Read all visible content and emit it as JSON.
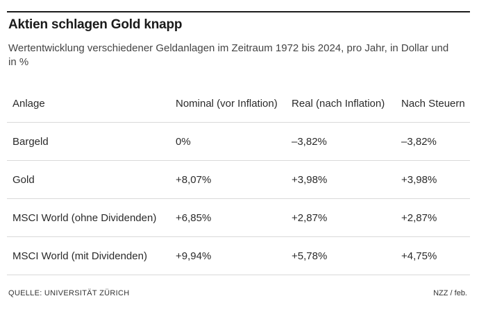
{
  "chart_data": {
    "type": "table",
    "title": "Aktien schlagen Gold knapp",
    "subtitle": "Wertentwicklung verschiedener Geldanlagen im Zeitraum 1972 bis 2024, pro Jahr, in Dollar und in %",
    "columns": [
      "Anlage",
      "Nominal (vor Inflation)",
      "Real (nach Inflation)",
      "Nach Steuern"
    ],
    "rows": [
      {
        "anlage": "Bargeld",
        "nominal": "0%",
        "real": "–3,82%",
        "steuern": "–3,82%"
      },
      {
        "anlage": "Gold",
        "nominal": "+8,07%",
        "real": "+3,98%",
        "steuern": "+3,98%"
      },
      {
        "anlage": "MSCI World (ohne Dividenden)",
        "nominal": "+6,85%",
        "real": "+2,87%",
        "steuern": "+2,87%"
      },
      {
        "anlage": "MSCI World (mit Dividenden)",
        "nominal": "+9,94%",
        "real": "+5,78%",
        "steuern": "+4,75%"
      }
    ],
    "source": "QUELLE: UNIVERSITÄT ZÜRICH",
    "credit": "NZZ / feb."
  }
}
